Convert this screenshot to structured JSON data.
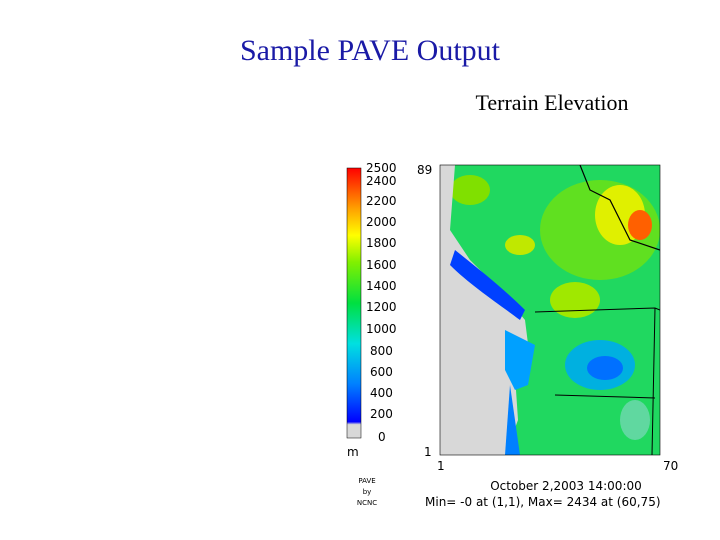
{
  "slide_title": "Sample PAVE Output",
  "plot": {
    "title": "Terrain Elevation",
    "colorbar": {
      "labels": [
        "2500",
        "2400",
        "2200",
        "2000",
        "1800",
        "1600",
        "1400",
        "1200",
        "1000",
        "800",
        "600",
        "400",
        "200",
        "0"
      ],
      "unit": "m"
    },
    "y_axis": {
      "top": "89",
      "bottom": "1"
    },
    "x_axis": {
      "left": "1",
      "right": "70"
    },
    "timestamp": "October 2,2003 14:00:00",
    "stats": "Min=  -0 at (1,1), Max= 2434 at (60,75)",
    "logo": [
      "PAVE",
      "by",
      "NCNC"
    ]
  }
}
